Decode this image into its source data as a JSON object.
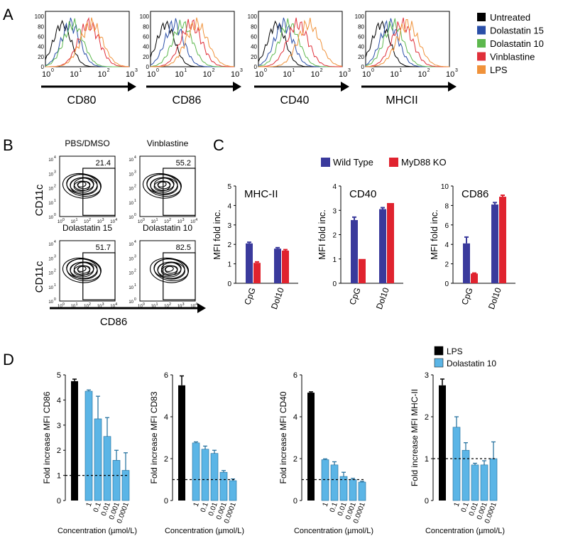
{
  "panels": {
    "a": "A",
    "b": "B",
    "c": "C",
    "d": "D"
  },
  "colors": {
    "untreated": "#000000",
    "dola15": "#2a4fa8",
    "dola10": "#5db84e",
    "vinb": "#e0303a",
    "lps": "#f0923a",
    "wt": "#3a3a9c",
    "ko": "#e0232f",
    "dol_blue": "#5bb5e6",
    "bar_black": "#000000"
  },
  "chart_data": [
    {
      "id": "A",
      "type": "line",
      "title": "Flow cytometry histograms",
      "legend": [
        {
          "label": "Untreated",
          "color": "#000000"
        },
        {
          "label": "Dolastatin 15",
          "color": "#2a4fa8"
        },
        {
          "label": "Dolastatin 10",
          "color": "#5db84e"
        },
        {
          "label": "Vinblastine",
          "color": "#e0303a"
        },
        {
          "label": "LPS",
          "color": "#f0923a"
        }
      ],
      "yticks": [
        "0",
        "20",
        "40",
        "60",
        "80",
        "100"
      ],
      "xticks": [
        "10",
        "10",
        "10",
        "10"
      ],
      "xexp": [
        "0",
        "1",
        "2",
        "3"
      ],
      "histograms": [
        {
          "marker": "CD80",
          "peaks": [
            0.6,
            0.9,
            1.0,
            1.55,
            1.65
          ]
        },
        {
          "marker": "CD86",
          "peaks": [
            0.55,
            0.85,
            1.15,
            1.45,
            1.65
          ]
        },
        {
          "marker": "CD40",
          "peaks": [
            0.65,
            0.9,
            1.1,
            1.4,
            1.8
          ]
        },
        {
          "marker": "MHCII",
          "peaks": [
            0.55,
            0.85,
            1.0,
            1.3,
            1.5
          ]
        }
      ]
    },
    {
      "id": "B",
      "type": "scatter",
      "title": "CD11c vs CD86 contour plots",
      "ylabel": "CD11c",
      "xlabel": "CD86",
      "ticks": [
        "10",
        "10",
        "10",
        "10",
        "10"
      ],
      "texp": [
        "0",
        "1",
        "2",
        "3",
        "4"
      ],
      "plots": [
        {
          "title": "PBS/DMSO",
          "value": "21.4"
        },
        {
          "title": "Vinblastine",
          "value": "55.2"
        },
        {
          "title": "Dolastatin 15",
          "value": "51.7"
        },
        {
          "title": "Dolastatin 10",
          "value": "82.5"
        }
      ]
    },
    {
      "id": "C",
      "type": "bar",
      "ylabel": "MFI fold inc.",
      "categories": [
        "CpG",
        "Dol10"
      ],
      "legend": [
        {
          "label": "Wild Type",
          "color": "#3a3a9c"
        },
        {
          "label": "MyD88 KO",
          "color": "#e0232f"
        }
      ],
      "charts": [
        {
          "title": "MHC-II",
          "ylim": [
            0,
            5
          ],
          "yticks": [
            "0",
            "1",
            "2",
            "3",
            "4",
            "5"
          ],
          "series": [
            {
              "name": "Wild Type",
              "values": [
                2.05,
                1.78
              ],
              "err": [
                0.06,
                0.05
              ]
            },
            {
              "name": "MyD88 KO",
              "values": [
                1.05,
                1.68
              ],
              "err": [
                0.05,
                0.05
              ]
            }
          ]
        },
        {
          "title": "CD40",
          "ylim": [
            0,
            4
          ],
          "yticks": [
            "0",
            "1",
            "2",
            "3",
            "4"
          ],
          "series": [
            {
              "name": "Wild Type",
              "values": [
                2.6,
                3.05
              ],
              "err": [
                0.12,
                0.06
              ]
            },
            {
              "name": "MyD88 KO",
              "values": [
                1.0,
                3.3
              ],
              "err": [
                0.0,
                0.0
              ]
            }
          ]
        },
        {
          "title": "CD86",
          "ylim": [
            0,
            10
          ],
          "yticks": [
            "0",
            "2",
            "4",
            "6",
            "8",
            "10"
          ],
          "series": [
            {
              "name": "Wild Type",
              "values": [
                4.1,
                8.1
              ],
              "err": [
                0.65,
                0.2
              ]
            },
            {
              "name": "MyD88 KO",
              "values": [
                1.0,
                8.9
              ],
              "err": [
                0.05,
                0.15
              ]
            }
          ]
        }
      ]
    },
    {
      "id": "D",
      "type": "bar",
      "xlabel": "Concentration (µmol/L)",
      "legend": [
        {
          "label": "LPS",
          "color": "#000000"
        },
        {
          "label": "Dolastatin 10",
          "color": "#5bb5e6"
        }
      ],
      "concentrations": [
        "1",
        "0.1",
        "0.01",
        "0.001",
        "0.0001"
      ],
      "charts": [
        {
          "ylabel": "Fold increase MFI CD86",
          "ylim": [
            0,
            5
          ],
          "yticks": [
            "0",
            "1",
            "2",
            "3",
            "4",
            "5"
          ],
          "lps": 4.75,
          "lps_err": 0.08,
          "values": [
            4.35,
            3.25,
            2.55,
            1.6,
            1.2
          ],
          "err": [
            0.05,
            0.9,
            0.75,
            0.4,
            0.7
          ]
        },
        {
          "ylabel": "Fold increase MFI CD83",
          "ylim": [
            0,
            6
          ],
          "yticks": [
            "0",
            "2",
            "4",
            "6"
          ],
          "lps": 5.5,
          "lps_err": 0.45,
          "values": [
            2.75,
            2.45,
            2.25,
            1.35,
            0.95
          ],
          "err": [
            0.05,
            0.15,
            0.15,
            0.08,
            0.08
          ]
        },
        {
          "ylabel": "Fold increase MFI CD40",
          "ylim": [
            0,
            6
          ],
          "yticks": [
            "0",
            "2",
            "4",
            "6"
          ],
          "lps": 5.15,
          "lps_err": 0.04,
          "values": [
            1.95,
            1.7,
            1.15,
            1.0,
            0.88
          ],
          "err": [
            0.04,
            0.15,
            0.2,
            0.06,
            0.04
          ]
        },
        {
          "ylabel": "Fold increase MFI MHC-II",
          "ylim": [
            0,
            3
          ],
          "yticks": [
            "0",
            "1",
            "2",
            "3"
          ],
          "lps": 2.75,
          "lps_err": 0.15,
          "values": [
            1.75,
            1.2,
            0.85,
            0.85,
            1.0
          ],
          "err": [
            0.25,
            0.18,
            0.04,
            0.1,
            0.4
          ]
        }
      ]
    }
  ]
}
